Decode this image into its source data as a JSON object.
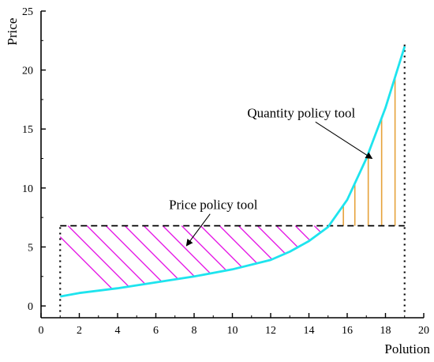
{
  "chart_data": {
    "type": "line",
    "xlabel": "Polution",
    "ylabel": "Price",
    "xlim": [
      0,
      20
    ],
    "ylim": [
      -1,
      25
    ],
    "x_ticks": [
      0,
      2,
      4,
      6,
      8,
      10,
      12,
      14,
      16,
      18,
      20
    ],
    "y_ticks": [
      0,
      5,
      10,
      15,
      20,
      25
    ],
    "grid": false,
    "curve": {
      "color": "#1ee4ee",
      "x": [
        1.0,
        2.0,
        4.0,
        6.0,
        8.0,
        10.0,
        12.0,
        13.0,
        14.0,
        15.0,
        16.0,
        17.0,
        18.0,
        19.0
      ],
      "y": [
        0.8,
        1.1,
        1.5,
        2.0,
        2.5,
        3.1,
        3.9,
        4.6,
        5.5,
        6.7,
        9.0,
        12.5,
        16.8,
        22.0
      ]
    },
    "price_line": {
      "y": 6.8,
      "x_range": [
        1,
        19
      ],
      "style": "dashed",
      "color": "#000000"
    },
    "vertical_lines": [
      {
        "x": 1,
        "y_range": [
          -0.5,
          6.8
        ],
        "style": "dotted"
      },
      {
        "x": 19,
        "y_range": [
          -0.5,
          22.2
        ],
        "style": "dotted"
      }
    ],
    "hatched_region": {
      "x_range": [
        1,
        15.3
      ],
      "between": [
        "curve",
        "price_line"
      ],
      "color": "#e51ee5"
    },
    "quantity_lines": {
      "x": [
        15.8,
        16.4,
        17.1,
        17.8,
        18.5
      ],
      "from_y": 6.8,
      "to": "curve",
      "color": "#e6a23a"
    },
    "annotations": [
      {
        "text": "Price policy tool",
        "text_at": [
          9,
          8.2
        ],
        "arrow_to": [
          7.6,
          5.1
        ]
      },
      {
        "text": "Quantity policy tool",
        "text_at": [
          13.6,
          16.0
        ],
        "arrow_to": [
          17.3,
          12.5
        ]
      }
    ]
  }
}
